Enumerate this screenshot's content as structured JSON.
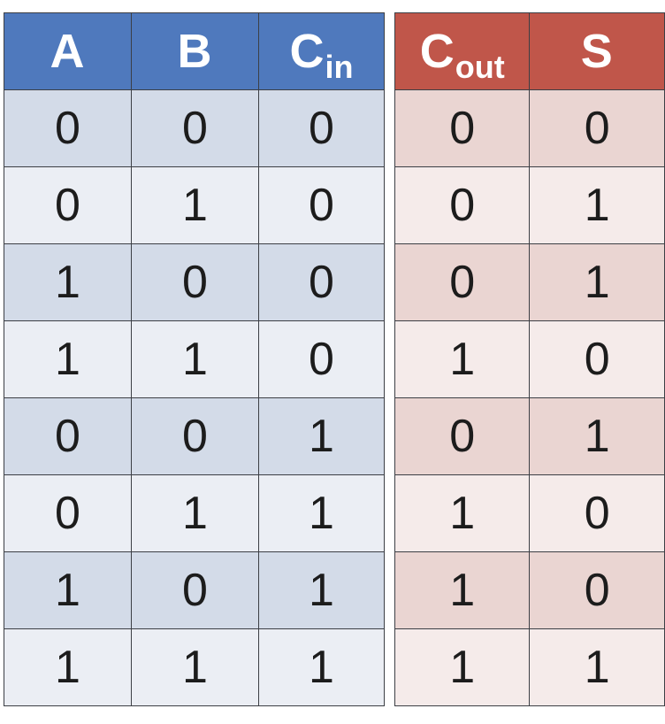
{
  "inputs": {
    "headers": [
      {
        "main": "A",
        "sub": ""
      },
      {
        "main": "B",
        "sub": ""
      },
      {
        "main": "C",
        "sub": "in"
      }
    ],
    "rows": [
      [
        "0",
        "0",
        "0"
      ],
      [
        "0",
        "1",
        "0"
      ],
      [
        "1",
        "0",
        "0"
      ],
      [
        "1",
        "1",
        "0"
      ],
      [
        "0",
        "0",
        "1"
      ],
      [
        "0",
        "1",
        "1"
      ],
      [
        "1",
        "0",
        "1"
      ],
      [
        "1",
        "1",
        "1"
      ]
    ]
  },
  "outputs": {
    "headers": [
      {
        "main": "C",
        "sub": "out"
      },
      {
        "main": "S",
        "sub": ""
      }
    ],
    "rows": [
      [
        "0",
        "0"
      ],
      [
        "0",
        "1"
      ],
      [
        "0",
        "1"
      ],
      [
        "1",
        "0"
      ],
      [
        "0",
        "1"
      ],
      [
        "1",
        "0"
      ],
      [
        "1",
        "0"
      ],
      [
        "1",
        "1"
      ]
    ]
  },
  "colors": {
    "input_header": "#4f79bd",
    "output_header": "#c0564a",
    "input_row_dark": "#d3dbe8",
    "input_row_light": "#ebeef4",
    "output_row_dark": "#ead5d2",
    "output_row_light": "#f5ebea"
  }
}
